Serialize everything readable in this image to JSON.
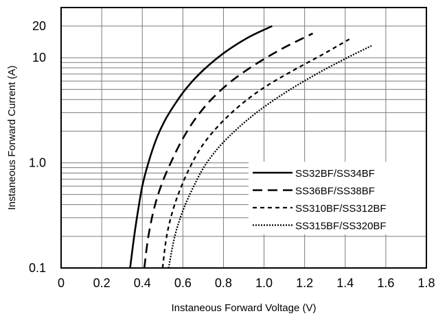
{
  "chart_data": {
    "type": "line",
    "title": "",
    "xlabel": "Instaneous Forward Voltage (V)",
    "ylabel": "Instaneous Forward Current (A)",
    "xlim": [
      0,
      1.8
    ],
    "ylim": [
      0.1,
      30
    ],
    "yscale": "log",
    "grid": true,
    "legend_position": "lower-right",
    "x_ticks": [
      0,
      0.2,
      0.4,
      0.6,
      0.8,
      1.0,
      1.2,
      1.4,
      1.6,
      1.8
    ],
    "x_tick_labels": [
      "0",
      "0.2",
      "0.4",
      "0.6",
      "0.8",
      "1.0",
      "1.2",
      "1.4",
      "1.6",
      "1.8"
    ],
    "y_ticks": [
      0.1,
      1.0,
      10,
      20
    ],
    "y_tick_labels": [
      "0.1",
      "1.0",
      "10",
      "20"
    ],
    "series": [
      {
        "name": "SS32BF/SS34BF",
        "style": "solid",
        "x": [
          0.34,
          0.36,
          0.38,
          0.4,
          0.43,
          0.47,
          0.51,
          0.56,
          0.62,
          0.7,
          0.8,
          0.92,
          1.04
        ],
        "y": [
          0.1,
          0.2,
          0.36,
          0.6,
          1.0,
          1.7,
          2.5,
          3.6,
          5.2,
          7.6,
          11,
          15.5,
          20
        ]
      },
      {
        "name": "SS36BF/SS38BF",
        "style": "dashed",
        "x": [
          0.41,
          0.43,
          0.46,
          0.5,
          0.55,
          0.6,
          0.66,
          0.74,
          0.84,
          0.96,
          1.1,
          1.24
        ],
        "y": [
          0.1,
          0.2,
          0.38,
          0.66,
          1.1,
          1.7,
          2.6,
          4.0,
          6.0,
          8.7,
          12.5,
          17
        ]
      },
      {
        "name": "SS310BF/SS312BF",
        "style": "short-dashed",
        "x": [
          0.5,
          0.52,
          0.55,
          0.59,
          0.64,
          0.7,
          0.78,
          0.88,
          1.0,
          1.14,
          1.28,
          1.42
        ],
        "y": [
          0.1,
          0.2,
          0.35,
          0.58,
          0.95,
          1.5,
          2.3,
          3.5,
          5.2,
          7.5,
          10.5,
          15
        ]
      },
      {
        "name": "SS315BF/SS320BF",
        "style": "dotted",
        "x": [
          0.53,
          0.56,
          0.6,
          0.65,
          0.71,
          0.79,
          0.89,
          1.0,
          1.13,
          1.27,
          1.41,
          1.53
        ],
        "y": [
          0.1,
          0.2,
          0.35,
          0.58,
          0.95,
          1.5,
          2.3,
          3.4,
          5.0,
          7.2,
          10,
          13
        ]
      }
    ]
  },
  "colors": {
    "line": "#000000",
    "grid": "#7a7a7a",
    "background": "#ffffff"
  }
}
